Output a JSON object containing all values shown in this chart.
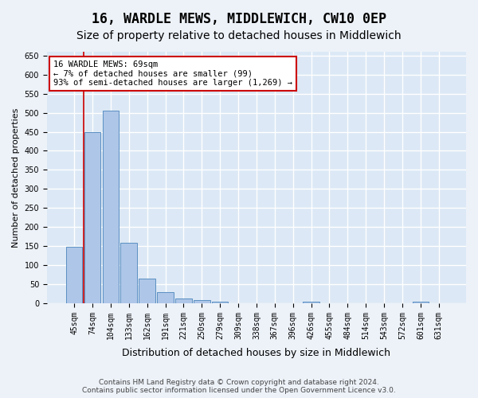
{
  "title": "16, WARDLE MEWS, MIDDLEWICH, CW10 0EP",
  "subtitle": "Size of property relative to detached houses in Middlewich",
  "xlabel": "Distribution of detached houses by size in Middlewich",
  "ylabel": "Number of detached properties",
  "categories": [
    "45sqm",
    "74sqm",
    "104sqm",
    "133sqm",
    "162sqm",
    "191sqm",
    "221sqm",
    "250sqm",
    "279sqm",
    "309sqm",
    "338sqm",
    "367sqm",
    "396sqm",
    "426sqm",
    "455sqm",
    "484sqm",
    "514sqm",
    "543sqm",
    "572sqm",
    "601sqm",
    "631sqm"
  ],
  "values": [
    148,
    449,
    506,
    158,
    65,
    30,
    13,
    8,
    5,
    0,
    0,
    0,
    0,
    5,
    0,
    0,
    0,
    0,
    0,
    5,
    0
  ],
  "bar_color": "#aec6e8",
  "bar_edge_color": "#5a8fc2",
  "annotation_text_line1": "16 WARDLE MEWS: 69sqm",
  "annotation_text_line2": "← 7% of detached houses are smaller (99)",
  "annotation_text_line3": "93% of semi-detached houses are larger (1,269) →",
  "annotation_box_facecolor": "#ffffff",
  "annotation_box_edgecolor": "#cc0000",
  "vline_color": "#cc0000",
  "vline_x": 0.5,
  "ylim": [
    0,
    660
  ],
  "yticks": [
    0,
    50,
    100,
    150,
    200,
    250,
    300,
    350,
    400,
    450,
    500,
    550,
    600,
    650
  ],
  "background_color": "#dce8f5",
  "fig_background_color": "#edf2f9",
  "grid_color": "#ffffff",
  "title_fontsize": 12,
  "subtitle_fontsize": 10,
  "ylabel_fontsize": 8,
  "xlabel_fontsize": 9,
  "tick_fontsize": 7,
  "annotation_fontsize": 7.5,
  "footer_fontsize": 6.5,
  "footer_line1": "Contains HM Land Registry data © Crown copyright and database right 2024.",
  "footer_line2": "Contains public sector information licensed under the Open Government Licence v3.0."
}
